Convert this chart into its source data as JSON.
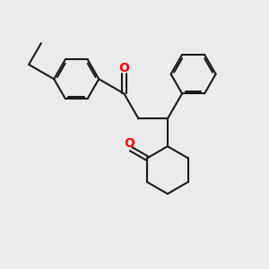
{
  "bg_color": "#ebebeb",
  "bond_color": "#1a1a1a",
  "oxygen_color": "#ff0000",
  "bond_width": 1.5,
  "figsize": [
    3.0,
    3.0
  ],
  "dpi": 100
}
